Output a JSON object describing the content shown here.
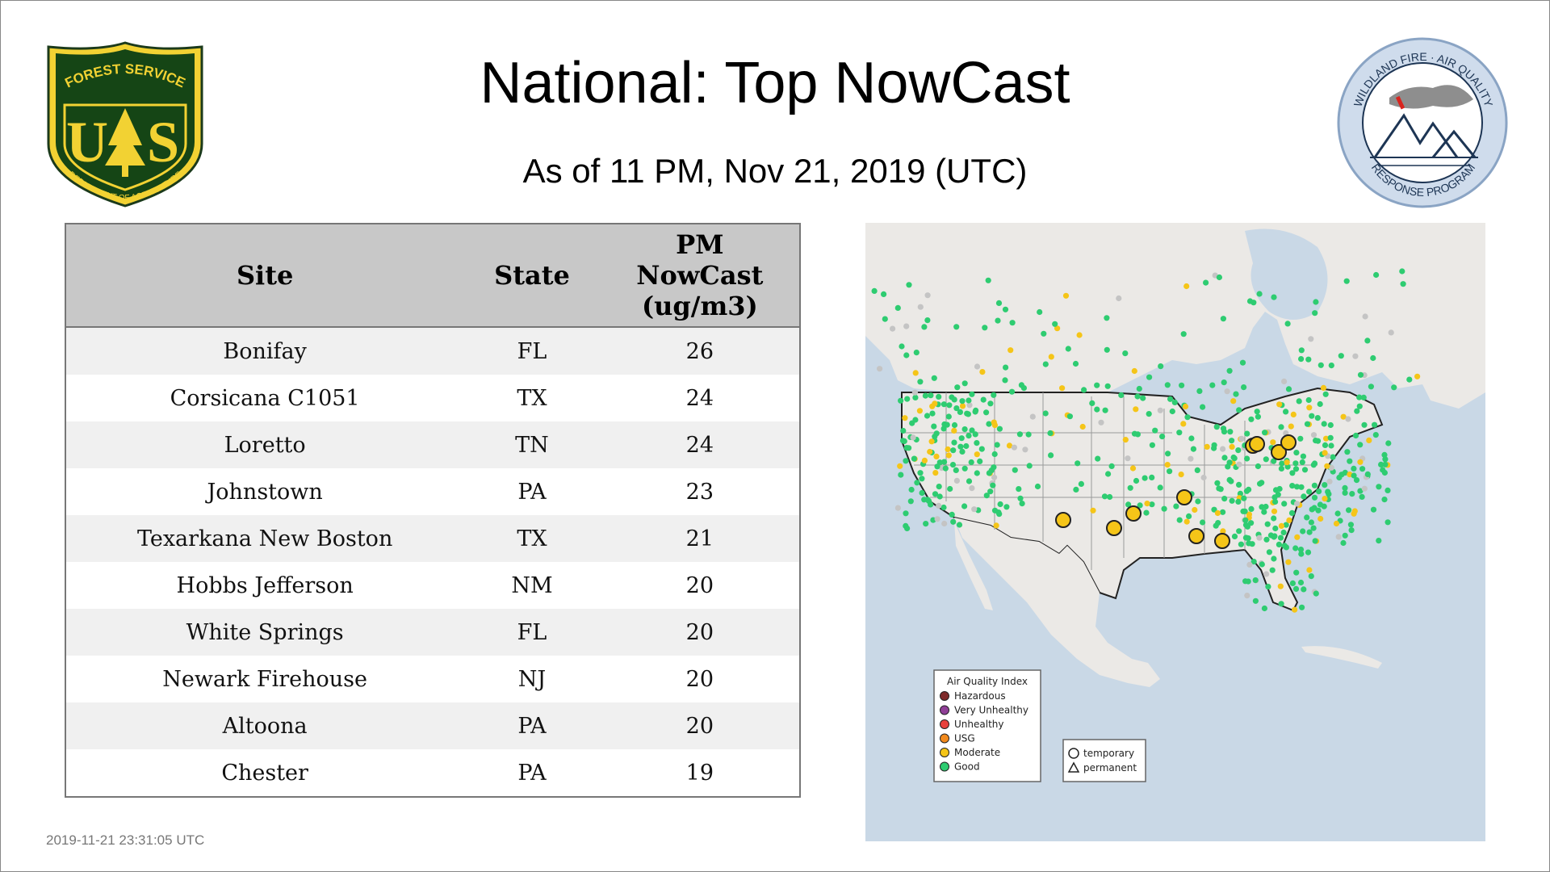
{
  "header": {
    "title": "National: Top NowCast",
    "subtitle": "As of 11 PM, Nov 21, 2019 (UTC)"
  },
  "logos": {
    "usfs": {
      "top_text": "FOREST SERVICE",
      "bottom_text": "DEPARTMENT OF AGRICULTURE",
      "letters": "U S"
    },
    "wfaq": {
      "top_text": "WILDLAND FIRE · AIR QUALITY",
      "bottom_text": "RESPONSE PROGRAM"
    }
  },
  "table": {
    "headers": [
      "Site",
      "State",
      "PM NowCast (ug/m3)"
    ],
    "header_value_lines": [
      "PM",
      "NowCast",
      "(ug/m3)"
    ],
    "rows": [
      {
        "site": "Bonifay",
        "state": "FL",
        "value": "26"
      },
      {
        "site": "Corsicana C1051",
        "state": "TX",
        "value": "24"
      },
      {
        "site": "Loretto",
        "state": "TN",
        "value": "24"
      },
      {
        "site": "Johnstown",
        "state": "PA",
        "value": "23"
      },
      {
        "site": "Texarkana New Boston",
        "state": "TX",
        "value": "21"
      },
      {
        "site": "Hobbs Jefferson",
        "state": "NM",
        "value": "20"
      },
      {
        "site": "White Springs",
        "state": "FL",
        "value": "20"
      },
      {
        "site": "Newark Firehouse",
        "state": "NJ",
        "value": "20"
      },
      {
        "site": "Altoona",
        "state": "PA",
        "value": "20"
      },
      {
        "site": "Chester",
        "state": "PA",
        "value": "19"
      }
    ]
  },
  "map": {
    "legend": {
      "title": "Air Quality Index",
      "items": [
        {
          "label": "Hazardous",
          "color": "#7e2a2a"
        },
        {
          "label": "Very Unhealthy",
          "color": "#8f3f97"
        },
        {
          "label": "Unhealthy",
          "color": "#e8413c"
        },
        {
          "label": "USG",
          "color": "#f28a1d"
        },
        {
          "label": "Moderate",
          "color": "#f5c518"
        },
        {
          "label": "Good",
          "color": "#2ecc71"
        }
      ]
    },
    "shape_legend": {
      "items": [
        "temporary",
        "permanent"
      ]
    },
    "colors": {
      "water": "#c9d8e6",
      "land": "#ebe9e6",
      "good": "#2ecc71",
      "moderate": "#f5c518",
      "nodata": "#c4c4c4"
    }
  },
  "footer": {
    "timestamp": "2019-11-21 23:31:05 UTC"
  }
}
